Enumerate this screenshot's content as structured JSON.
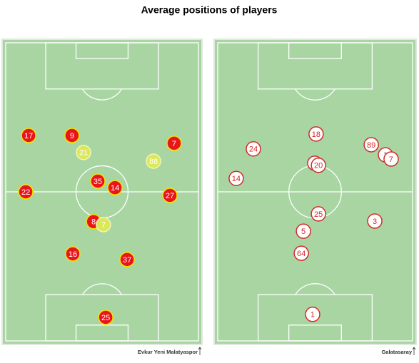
{
  "title": "Average positions of players",
  "chart_data": [
    {
      "type": "scatter",
      "caption": "Evkur Yeni Malatyaspor",
      "xlim": [
        0,
        100
      ],
      "ylim": [
        0,
        100
      ],
      "series": [
        {
          "color": "#e8161b",
          "border": "#f2e400",
          "text_color": "#ffffff",
          "labels": [
            "17",
            "9",
            "7",
            "35",
            "14",
            "22",
            "27",
            "8",
            "16",
            "37",
            "25"
          ],
          "x": [
            11.9,
            34.4,
            87.4,
            47.8,
            56.7,
            10.4,
            85.2,
            45.6,
            34.8,
            63.0,
            51.9
          ],
          "values": [
            31.1,
            31.1,
            33.7,
            46.4,
            48.6,
            50.0,
            51.2,
            60.0,
            70.8,
            72.7,
            92.1
          ]
        },
        {
          "color": "#dbe85a",
          "border": "#f2f7b0",
          "text_color": "#ffffff",
          "labels": [
            "21",
            "88",
            "7"
          ],
          "x": [
            40.4,
            76.7,
            50.7
          ],
          "values": [
            36.8,
            39.7,
            61.0
          ]
        }
      ]
    },
    {
      "type": "scatter",
      "caption": "Galatasaray",
      "xlim": [
        0,
        100
      ],
      "ylim": [
        0,
        100
      ],
      "series": [
        {
          "color": "#ffffff",
          "border": "#d42a2a",
          "text_color": "#d42a2a",
          "labels": [
            "18",
            "24",
            "89",
            "1",
            "7",
            null,
            "20",
            "14",
            "25",
            "3",
            "5",
            "64",
            "1"
          ],
          "x": [
            50.5,
            18.3,
            78.8,
            86.1,
            89.0,
            49.8,
            51.7,
            9.5,
            51.7,
            80.6,
            44.0,
            42.9,
            48.7
          ],
          "values": [
            30.6,
            35.6,
            34.2,
            37.6,
            39.0,
            40.4,
            41.1,
            45.5,
            57.4,
            59.8,
            63.2,
            70.6,
            91.1
          ]
        }
      ]
    }
  ]
}
